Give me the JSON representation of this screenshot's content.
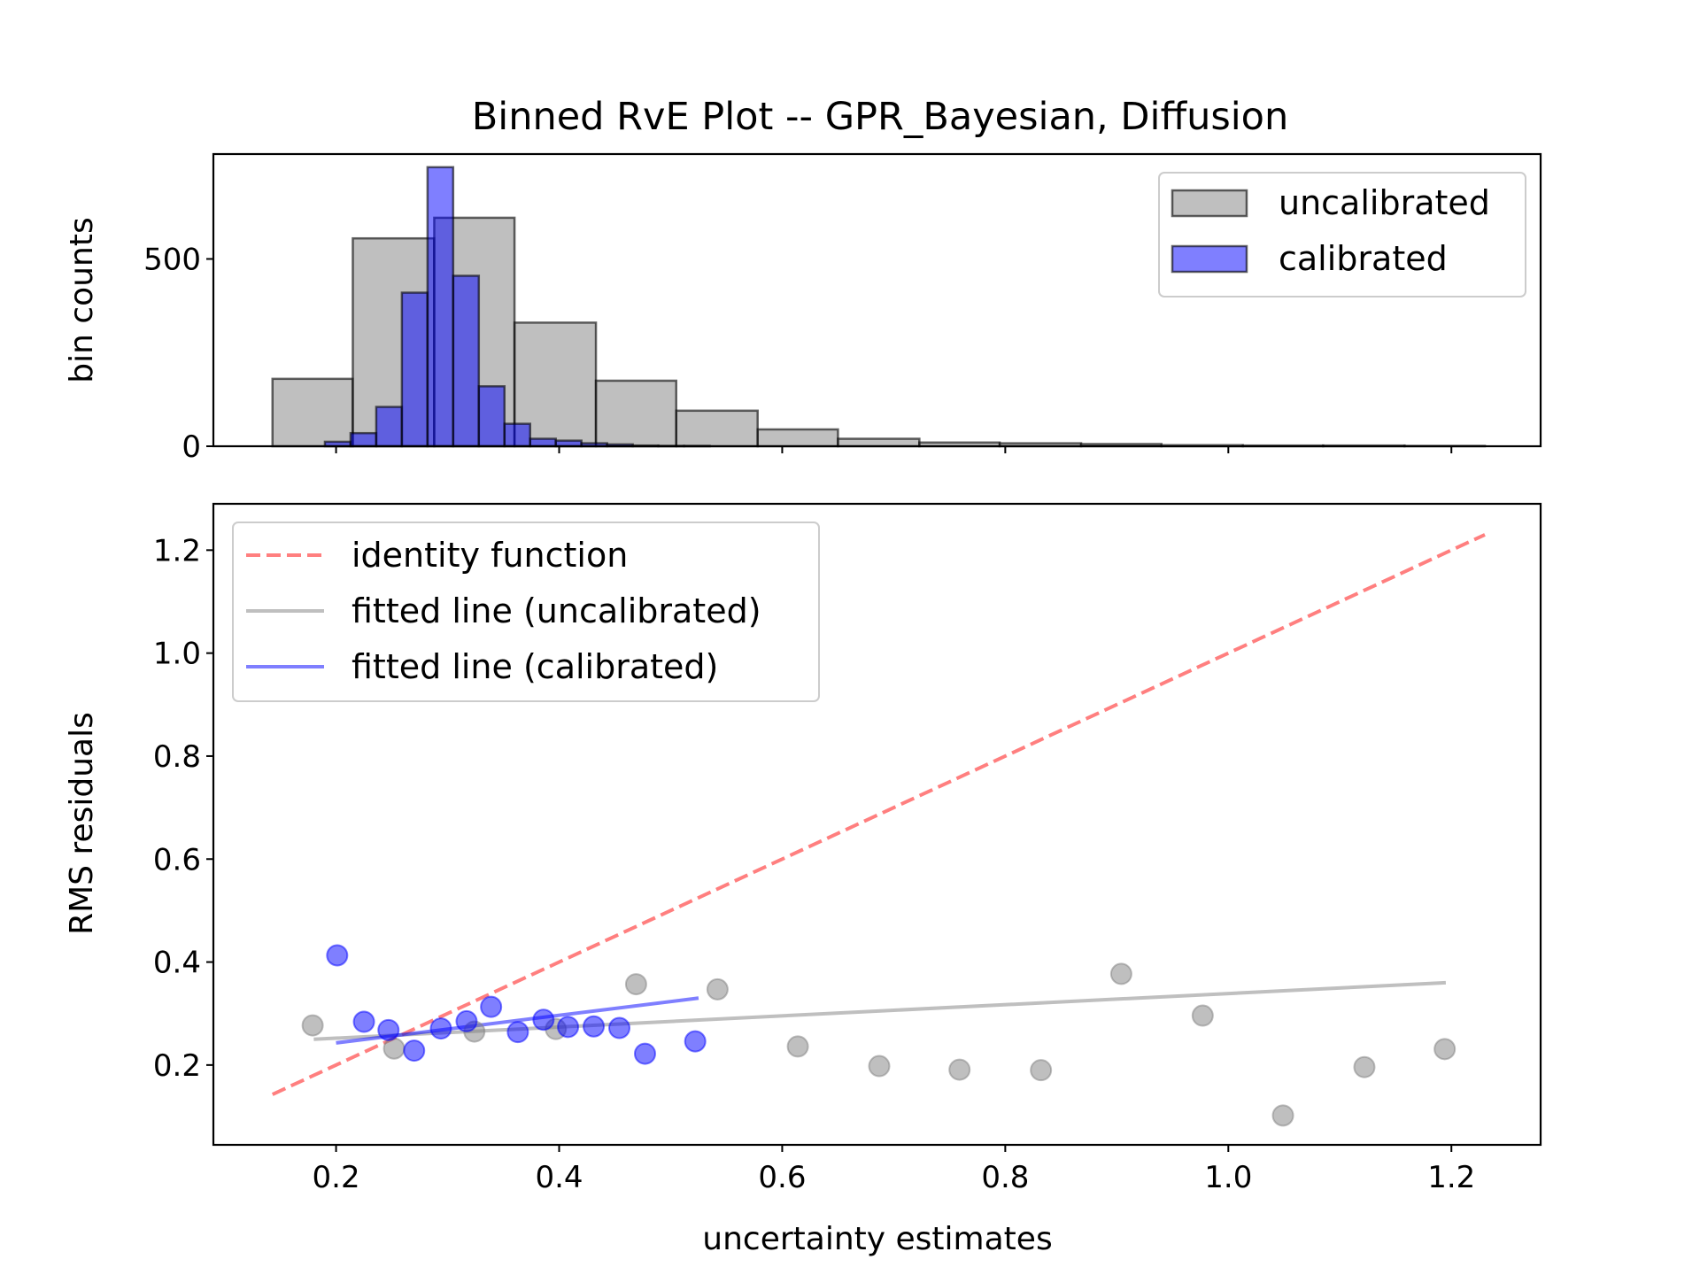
{
  "chart_data": [
    {
      "type": "bar",
      "title": "Binned RvE Plot -- GPR_Bayesian, Diffusion",
      "ylabel": "bin counts",
      "xlabel": "",
      "xlim": [
        0.09,
        1.28
      ],
      "ylim": [
        0,
        780
      ],
      "y_ticks": [
        "0",
        "500"
      ],
      "legend_position": "top-right",
      "series": [
        {
          "name": "uncalibrated",
          "color": "#808080",
          "opacity": 0.5,
          "bin_edges": [
            0.143,
            0.215,
            0.288,
            0.36,
            0.433,
            0.505,
            0.578,
            0.65,
            0.723,
            0.795,
            0.868,
            0.94,
            1.013,
            1.085,
            1.158,
            1.23
          ],
          "counts": [
            180,
            555,
            610,
            330,
            175,
            95,
            45,
            20,
            10,
            8,
            6,
            3,
            2,
            2,
            1
          ]
        },
        {
          "name": "calibrated",
          "color": "#0000ff",
          "opacity": 0.5,
          "bin_edges": [
            0.19,
            0.213,
            0.236,
            0.259,
            0.282,
            0.305,
            0.328,
            0.351,
            0.374,
            0.397,
            0.42,
            0.443,
            0.466,
            0.489,
            0.512,
            0.535
          ],
          "counts": [
            12,
            35,
            105,
            410,
            745,
            455,
            160,
            60,
            20,
            15,
            8,
            5,
            2,
            1,
            1
          ]
        }
      ]
    },
    {
      "type": "scatter",
      "title": "",
      "xlabel": "uncertainty estimates",
      "ylabel": "RMS residuals",
      "xlim": [
        0.09,
        1.28
      ],
      "ylim": [
        0.045,
        1.29
      ],
      "x_ticks": [
        "0.2",
        "0.4",
        "0.6",
        "0.8",
        "1.0",
        "1.2"
      ],
      "y_ticks": [
        "0.2",
        "0.4",
        "0.6",
        "0.8",
        "1.0",
        "1.2"
      ],
      "legend_position": "top-left",
      "lines": [
        {
          "name": "identity function",
          "color": "#ff0000",
          "opacity": 0.5,
          "style": "dashed",
          "x": [
            0.143,
            1.23
          ],
          "y": [
            0.143,
            1.23
          ]
        },
        {
          "name": "fitted line (uncalibrated)",
          "color": "#808080",
          "opacity": 0.5,
          "style": "solid",
          "x": [
            0.18,
            1.195
          ],
          "y": [
            0.25,
            0.36
          ]
        },
        {
          "name": "fitted line (calibrated)",
          "color": "#0000ff",
          "opacity": 0.5,
          "style": "solid",
          "x": [
            0.2,
            0.525
          ],
          "y": [
            0.243,
            0.33
          ]
        }
      ],
      "series": [
        {
          "name": "uncalibrated",
          "color": "#808080",
          "opacity": 0.5,
          "points": [
            [
              0.179,
              0.277
            ],
            [
              0.252,
              0.232
            ],
            [
              0.324,
              0.265
            ],
            [
              0.397,
              0.27
            ],
            [
              0.469,
              0.357
            ],
            [
              0.542,
              0.347
            ],
            [
              0.614,
              0.236
            ],
            [
              0.687,
              0.198
            ],
            [
              0.759,
              0.191
            ],
            [
              0.832,
              0.19
            ],
            [
              0.904,
              0.377
            ],
            [
              0.977,
              0.296
            ],
            [
              1.049,
              0.102
            ],
            [
              1.122,
              0.196
            ],
            [
              1.194,
              0.231
            ]
          ]
        },
        {
          "name": "calibrated",
          "color": "#0000ff",
          "opacity": 0.5,
          "points": [
            [
              0.201,
              0.413
            ],
            [
              0.225,
              0.284
            ],
            [
              0.247,
              0.268
            ],
            [
              0.27,
              0.228
            ],
            [
              0.294,
              0.271
            ],
            [
              0.317,
              0.285
            ],
            [
              0.339,
              0.313
            ],
            [
              0.363,
              0.264
            ],
            [
              0.386,
              0.288
            ],
            [
              0.408,
              0.274
            ],
            [
              0.431,
              0.275
            ],
            [
              0.454,
              0.272
            ],
            [
              0.477,
              0.222
            ],
            [
              0.522,
              0.246
            ]
          ]
        }
      ]
    }
  ]
}
